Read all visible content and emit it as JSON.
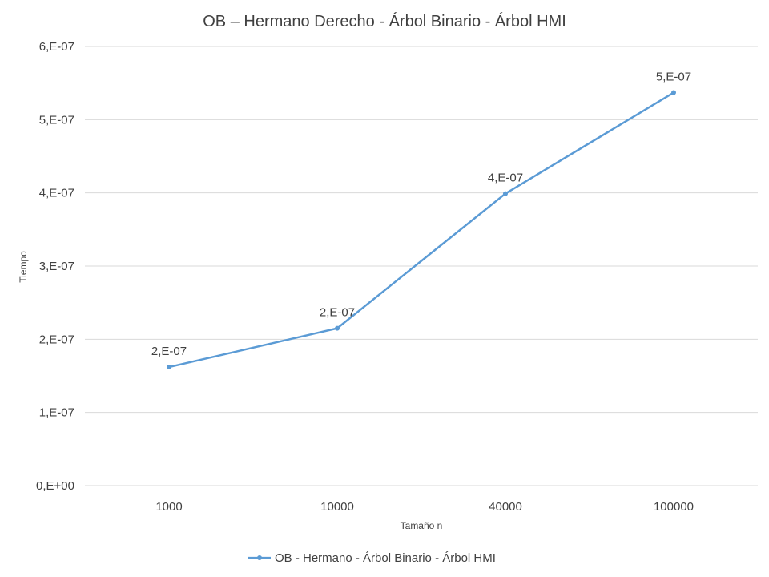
{
  "chart_data": {
    "type": "line",
    "title": "OB – Hermano Derecho - Árbol Binario - Árbol HMI",
    "xlabel": "Tamaño n",
    "ylabel": "Tiempo",
    "categories": [
      "1000",
      "10000",
      "40000",
      "100000"
    ],
    "series": [
      {
        "name": "OB - Hermano - Árbol Binario - Árbol HMI",
        "values": [
          1.62e-07,
          2.15e-07,
          3.99e-07,
          5.37e-07
        ],
        "data_labels": [
          "2,E-07",
          "2,E-07",
          "4,E-07",
          "5,E-07"
        ],
        "color": "#5b9bd5"
      }
    ],
    "ylim": [
      0,
      6e-07
    ],
    "yticks": [
      0,
      1e-07,
      2e-07,
      3e-07,
      4e-07,
      5e-07,
      6e-07
    ],
    "ytick_labels": [
      "0,E+00",
      "1,E-07",
      "2,E-07",
      "3,E-07",
      "4,E-07",
      "5,E-07",
      "6,E-07"
    ],
    "grid": true,
    "legend_position": "bottom"
  }
}
